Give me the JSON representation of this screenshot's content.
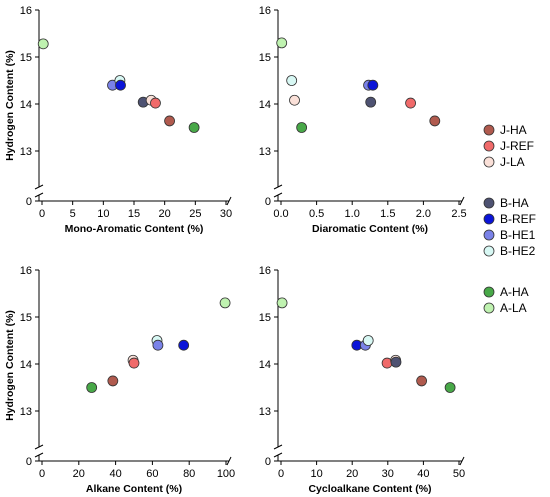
{
  "figure": {
    "legend_position": "right",
    "y_axis_label": "Hydrogen Content (%)"
  },
  "colors": {
    "J-HA": "#b05a4e",
    "J-REF": "#f06a6a",
    "J-LA": "#fae0d8",
    "B-HA": "#4e5272",
    "B-REF": "#0a14d8",
    "B-HE1": "#7a82e8",
    "B-HE2": "#d8f8f4",
    "A-HA": "#48a848",
    "A-LA": "#bff2b0"
  },
  "legend": [
    {
      "name": "J-HA",
      "label": "J-HA"
    },
    {
      "name": "J-REF",
      "label": "J-REF"
    },
    {
      "name": "J-LA",
      "label": "J-LA"
    },
    {
      "name": "B-HA",
      "label": "B-HA"
    },
    {
      "name": "B-REF",
      "label": "B-REF"
    },
    {
      "name": "B-HE1",
      "label": "B-HE1"
    },
    {
      "name": "B-HE2",
      "label": "B-HE2"
    },
    {
      "name": "A-HA",
      "label": "A-HA"
    },
    {
      "name": "A-LA",
      "label": "A-LA"
    }
  ],
  "chart_data": [
    {
      "type": "scatter",
      "xlabel": "Mono-Aromatic Content (%)",
      "ylabel": "Hydrogen Content (%)",
      "xlim": [
        0,
        30
      ],
      "xticks": [
        0,
        5,
        10,
        15,
        20,
        25,
        30
      ],
      "ylim": [
        12,
        16
      ],
      "yticks": [
        13,
        14,
        15,
        16
      ],
      "y_axis_break": true,
      "y_zero_label": 0,
      "points": [
        {
          "series": "A-LA",
          "x": 0.2,
          "y": 15.28
        },
        {
          "series": "B-HE1",
          "x": 11.5,
          "y": 14.4
        },
        {
          "series": "B-HE2",
          "x": 12.7,
          "y": 14.5
        },
        {
          "series": "B-REF",
          "x": 12.8,
          "y": 14.4
        },
        {
          "series": "B-HA",
          "x": 16.5,
          "y": 14.04
        },
        {
          "series": "J-LA",
          "x": 17.8,
          "y": 14.08
        },
        {
          "series": "J-REF",
          "x": 18.5,
          "y": 14.02
        },
        {
          "series": "J-HA",
          "x": 20.8,
          "y": 13.64
        },
        {
          "series": "A-HA",
          "x": 24.8,
          "y": 13.5
        }
      ]
    },
    {
      "type": "scatter",
      "xlabel": "Diaromatic Content (%)",
      "ylabel": "",
      "xlim": [
        0,
        2.5
      ],
      "xticks": [
        0.0,
        0.5,
        1.0,
        1.5,
        2.0,
        2.5
      ],
      "xtick_labels": [
        "0.0",
        "0.5",
        "1.0",
        "1.5",
        "2.0",
        "2.5"
      ],
      "ylim": [
        12,
        16
      ],
      "yticks": [
        13,
        14,
        15,
        16
      ],
      "y_axis_break": true,
      "y_zero_label": 0,
      "points": [
        {
          "series": "A-LA",
          "x": 0.01,
          "y": 15.3
        },
        {
          "series": "B-HE2",
          "x": 0.15,
          "y": 14.5
        },
        {
          "series": "J-LA",
          "x": 0.19,
          "y": 14.08
        },
        {
          "series": "A-HA",
          "x": 0.29,
          "y": 13.5
        },
        {
          "series": "B-HE1",
          "x": 1.23,
          "y": 14.4
        },
        {
          "series": "B-REF",
          "x": 1.29,
          "y": 14.4
        },
        {
          "series": "B-HA",
          "x": 1.26,
          "y": 14.04
        },
        {
          "series": "J-REF",
          "x": 1.82,
          "y": 14.02
        },
        {
          "series": "J-HA",
          "x": 2.16,
          "y": 13.64
        }
      ]
    },
    {
      "type": "scatter",
      "xlabel": "Alkane Content (%)",
      "ylabel": "Hydrogen Content (%)",
      "xlim": [
        0,
        100
      ],
      "xticks": [
        0,
        20,
        40,
        60,
        80,
        100
      ],
      "ylim": [
        12,
        16
      ],
      "yticks": [
        13,
        14,
        15,
        16
      ],
      "y_axis_break": true,
      "y_zero_label": 0,
      "points": [
        {
          "series": "A-HA",
          "x": 27,
          "y": 13.5
        },
        {
          "series": "J-HA",
          "x": 38.5,
          "y": 13.64
        },
        {
          "series": "J-LA",
          "x": 49.5,
          "y": 14.08
        },
        {
          "series": "J-REF",
          "x": 50,
          "y": 14.02
        },
        {
          "series": "B-HE2",
          "x": 62.5,
          "y": 14.5
        },
        {
          "series": "B-HE1",
          "x": 63,
          "y": 14.4
        },
        {
          "series": "B-REF",
          "x": 77,
          "y": 14.4
        },
        {
          "series": "A-LA",
          "x": 99.5,
          "y": 15.3
        }
      ]
    },
    {
      "type": "scatter",
      "xlabel": "Cycloalkane Content (%)",
      "ylabel": "",
      "xlim": [
        0,
        50
      ],
      "xticks": [
        0,
        10,
        20,
        30,
        40,
        50
      ],
      "ylim": [
        12,
        16
      ],
      "yticks": [
        13,
        14,
        15,
        16
      ],
      "y_axis_break": true,
      "y_zero_label": 0,
      "points": [
        {
          "series": "A-LA",
          "x": 0.3,
          "y": 15.3
        },
        {
          "series": "B-REF",
          "x": 21.3,
          "y": 14.4
        },
        {
          "series": "B-HE1",
          "x": 23.7,
          "y": 14.4
        },
        {
          "series": "B-HE2",
          "x": 24.5,
          "y": 14.5
        },
        {
          "series": "J-REF",
          "x": 29.8,
          "y": 14.02
        },
        {
          "series": "J-LA",
          "x": 32.2,
          "y": 14.08
        },
        {
          "series": "B-HA",
          "x": 32.3,
          "y": 14.04
        },
        {
          "series": "J-HA",
          "x": 39.5,
          "y": 13.64
        },
        {
          "series": "A-HA",
          "x": 47.5,
          "y": 13.5
        }
      ]
    }
  ]
}
